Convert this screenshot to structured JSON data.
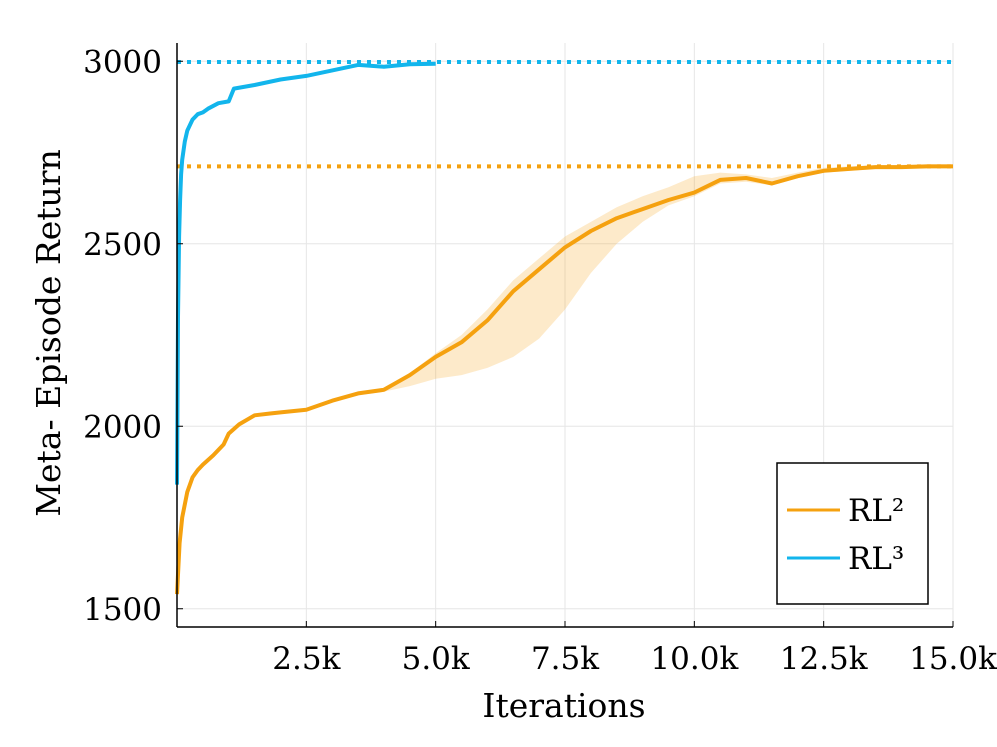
{
  "chart_data": {
    "type": "line",
    "title": "",
    "xlabel": "Iterations",
    "ylabel": "Meta- Episode Return",
    "xlim": [
      0,
      15000
    ],
    "ylim": [
      1450,
      3050
    ],
    "grid": true,
    "legend_position": "bottom-right",
    "x_ticks": [
      2500,
      5000,
      7500,
      10000,
      12500,
      15000
    ],
    "x_tick_labels": [
      "2.5k",
      "5.0k",
      "7.5k",
      "10.0k",
      "12.5k",
      "15.0k"
    ],
    "y_ticks": [
      1500,
      2000,
      2500,
      3000
    ],
    "y_tick_labels": [
      "1500",
      "2000",
      "2500",
      "3000"
    ],
    "series": [
      {
        "name": "RL²",
        "color": "#f5a10f",
        "reference_line": 2712,
        "x": [
          0,
          50,
          100,
          200,
          300,
          400,
          500,
          700,
          900,
          1000,
          1200,
          1500,
          1800,
          2000,
          2500,
          3000,
          3500,
          4000,
          4500,
          5000,
          5500,
          6000,
          6500,
          7000,
          7500,
          8000,
          8500,
          9000,
          9500,
          10000,
          10500,
          11000,
          11500,
          12000,
          12500,
          13000,
          13500,
          14000,
          14500,
          15000
        ],
        "y": [
          1540,
          1680,
          1750,
          1820,
          1860,
          1880,
          1895,
          1920,
          1950,
          1980,
          2005,
          2030,
          2035,
          2038,
          2045,
          2070,
          2090,
          2100,
          2140,
          2190,
          2230,
          2290,
          2370,
          2430,
          2490,
          2535,
          2570,
          2595,
          2620,
          2640,
          2675,
          2680,
          2665,
          2685,
          2700,
          2705,
          2710,
          2710,
          2712,
          2712
        ],
        "band_lower": [
          1540,
          1680,
          1750,
          1820,
          1860,
          1880,
          1895,
          1920,
          1950,
          1980,
          2005,
          2030,
          2035,
          2038,
          2045,
          2070,
          2085,
          2095,
          2110,
          2130,
          2140,
          2160,
          2190,
          2240,
          2320,
          2420,
          2500,
          2560,
          2605,
          2630,
          2665,
          2670,
          2660,
          2680,
          2695,
          2700,
          2705,
          2705,
          2708,
          2708
        ],
        "band_upper": [
          1540,
          1680,
          1750,
          1820,
          1860,
          1880,
          1895,
          1920,
          1950,
          1980,
          2005,
          2030,
          2035,
          2038,
          2045,
          2070,
          2090,
          2105,
          2145,
          2200,
          2250,
          2320,
          2400,
          2460,
          2520,
          2560,
          2600,
          2630,
          2655,
          2685,
          2695,
          2690,
          2680,
          2695,
          2708,
          2712,
          2715,
          2716,
          2718,
          2718
        ]
      },
      {
        "name": "RL³",
        "color": "#12b5ec",
        "reference_line": 2998,
        "x": [
          0,
          20,
          40,
          60,
          80,
          100,
          150,
          200,
          300,
          400,
          500,
          600,
          800,
          1000,
          1100,
          1500,
          2000,
          2500,
          3000,
          3500,
          4000,
          4500,
          5000
        ],
        "y": [
          1840,
          2300,
          2520,
          2620,
          2690,
          2730,
          2780,
          2810,
          2840,
          2855,
          2860,
          2870,
          2885,
          2890,
          2925,
          2935,
          2950,
          2960,
          2975,
          2990,
          2985,
          2992,
          2993
        ]
      }
    ]
  }
}
